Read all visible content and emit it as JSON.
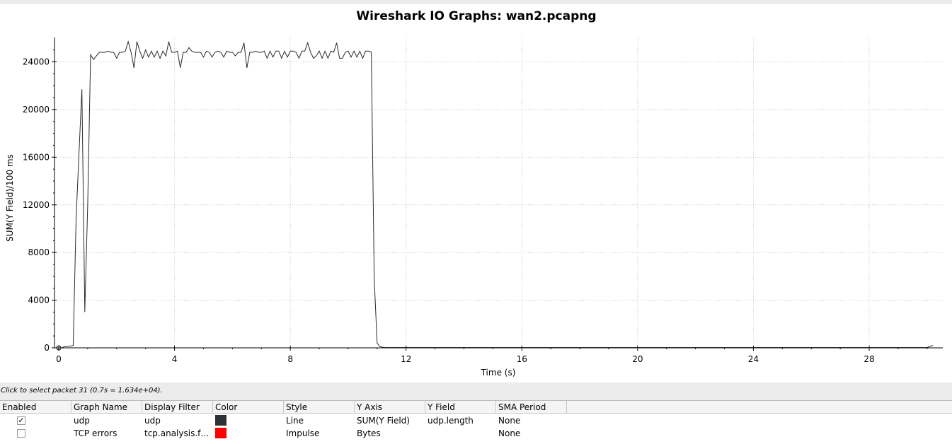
{
  "title": "Wireshark IO Graphs: wan2.pcapng",
  "status_text": "Click to select packet 31 (0.7s = 1.634e+04).",
  "chart_data": {
    "type": "line",
    "title": "Wireshark IO Graphs: wan2.pcapng",
    "xlabel": "Time (s)",
    "ylabel": "SUM(Y Field)/100 ms",
    "xlim": [
      0,
      30.3
    ],
    "ylim": [
      0,
      25500
    ],
    "xticks": [
      0,
      4,
      8,
      12,
      16,
      20,
      24,
      28
    ],
    "yticks": [
      0,
      4000,
      8000,
      12000,
      16000,
      20000,
      24000
    ],
    "grid": true,
    "series": [
      {
        "name": "udp",
        "color": "#2b2b2b",
        "x": [
          0.0,
          0.1,
          0.2,
          0.3,
          0.4,
          0.5,
          0.6,
          0.7,
          0.8,
          0.9,
          1.0,
          1.1,
          1.2,
          1.3,
          1.4,
          1.5,
          1.6,
          1.7,
          1.8,
          1.9,
          2.0,
          2.1,
          2.2,
          2.3,
          2.4,
          2.5,
          2.6,
          2.7,
          2.8,
          2.9,
          3.0,
          3.1,
          3.2,
          3.3,
          3.4,
          3.5,
          3.6,
          3.7,
          3.8,
          3.9,
          4.0,
          4.1,
          4.2,
          4.3,
          4.4,
          4.5,
          4.6,
          4.7,
          4.8,
          4.9,
          5.0,
          5.1,
          5.2,
          5.3,
          5.4,
          5.5,
          5.6,
          5.7,
          5.8,
          5.9,
          6.0,
          6.1,
          6.2,
          6.3,
          6.4,
          6.5,
          6.6,
          6.7,
          6.8,
          6.9,
          7.0,
          7.1,
          7.2,
          7.3,
          7.4,
          7.5,
          7.6,
          7.7,
          7.8,
          7.9,
          8.0,
          8.1,
          8.2,
          8.3,
          8.4,
          8.5,
          8.6,
          8.7,
          8.8,
          8.9,
          9.0,
          9.1,
          9.2,
          9.3,
          9.4,
          9.5,
          9.6,
          9.7,
          9.8,
          9.9,
          10.0,
          10.1,
          10.2,
          10.3,
          10.4,
          10.5,
          10.6,
          10.7,
          10.8,
          10.9,
          11.0,
          11.1,
          11.2,
          11.3,
          11.5,
          12.0,
          16.0,
          20.0,
          24.0,
          28.0,
          30.0,
          30.2
        ],
        "values": [
          0,
          0,
          100,
          100,
          150,
          200,
          10800,
          16340,
          21700,
          3000,
          12000,
          24600,
          24200,
          24500,
          24800,
          24800,
          24800,
          24900,
          24800,
          24800,
          24300,
          24800,
          24800,
          24900,
          25700,
          24800,
          23500,
          25700,
          24900,
          24300,
          25000,
          24400,
          24900,
          24400,
          24900,
          24300,
          24900,
          24500,
          25700,
          24800,
          24800,
          24900,
          23500,
          24800,
          24800,
          25200,
          24900,
          24800,
          24800,
          24800,
          24400,
          24900,
          24800,
          24400,
          24800,
          24900,
          24800,
          24400,
          24900,
          24800,
          24800,
          24500,
          24800,
          24800,
          25600,
          23500,
          24800,
          24800,
          24900,
          24800,
          24800,
          24900,
          24300,
          24900,
          24400,
          24900,
          24900,
          24300,
          24900,
          24400,
          24900,
          24900,
          24800,
          24300,
          24900,
          24900,
          25600,
          24800,
          24300,
          24500,
          24900,
          24300,
          24900,
          24300,
          24900,
          24800,
          25600,
          24300,
          24300,
          24800,
          24900,
          24400,
          24900,
          24400,
          24900,
          24300,
          24900,
          24900,
          24800,
          5800,
          400,
          100,
          50,
          30,
          30,
          30,
          30,
          30,
          30,
          30,
          30,
          200
        ]
      }
    ]
  },
  "table": {
    "headers": {
      "enabled": "Enabled",
      "graph_name": "Graph Name",
      "display_filter": "Display Filter",
      "color": "Color",
      "style": "Style",
      "y_axis": "Y Axis",
      "y_field": "Y Field",
      "sma_period": "SMA Period"
    },
    "rows": [
      {
        "enabled": true,
        "check_mark": "✓",
        "graph_name": "udp",
        "display_filter": "udp",
        "color": "#2e3133",
        "style": "Line",
        "y_axis": "SUM(Y Field)",
        "y_field": "udp.length",
        "sma_period": "None"
      },
      {
        "enabled": false,
        "check_mark": "",
        "graph_name": "TCP errors",
        "display_filter": "tcp.analysis.f…",
        "color": "#ff0000",
        "style": "Impulse",
        "y_axis": "Bytes",
        "y_field": "",
        "sma_period": "None"
      }
    ]
  }
}
